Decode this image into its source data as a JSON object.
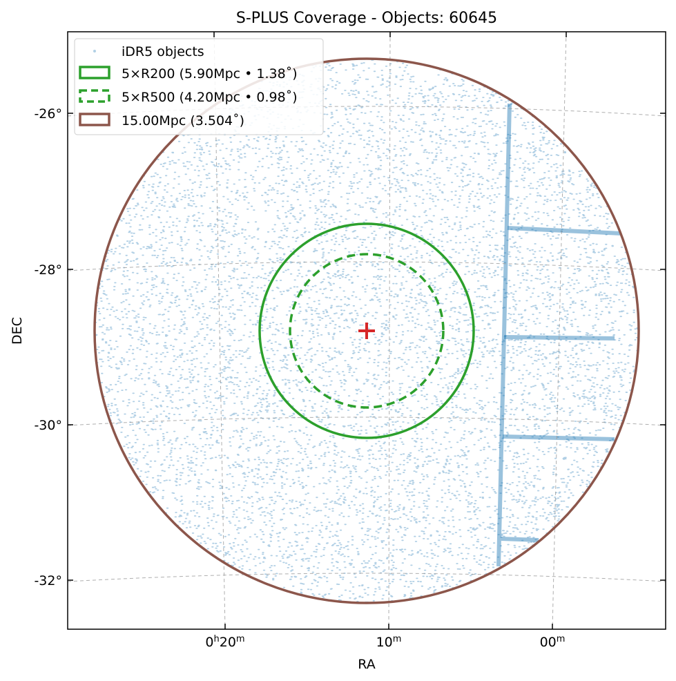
{
  "chart_data": {
    "type": "scatter",
    "title": "S-PLUS Coverage - Objects: 60645",
    "xlabel": "RA",
    "ylabel": "DEC",
    "object_count": 60645,
    "projection": "sky (WCS, gnomonic-like)",
    "grid": true,
    "legend_position": "top-left",
    "center": {
      "ra_label": "0h11m",
      "dec_deg": -28.8,
      "marker": "plus",
      "marker_color": "#d62728"
    },
    "x_ticks": [
      {
        "label": "0",
        "sup1": "h",
        "mid": "20",
        "sup2": "m"
      },
      {
        "label": "",
        "sup1": "",
        "mid": "10",
        "sup2": "m"
      },
      {
        "label": "",
        "sup1": "",
        "mid": "00",
        "sup2": "m"
      }
    ],
    "y_ticks": [
      "-26°",
      "-28°",
      "-30°",
      "-32°"
    ],
    "series": [
      {
        "name": "iDR5 objects",
        "kind": "points",
        "color": "#1f77b4"
      },
      {
        "name": "5×R200 (5.90Mpc • 1.38˚)",
        "kind": "circle",
        "radius_deg": 1.38,
        "color": "#2ca02c",
        "linestyle": "solid"
      },
      {
        "name": "5×R500 (4.20Mpc • 0.98˚)",
        "kind": "circle",
        "radius_deg": 0.98,
        "color": "#2ca02c",
        "linestyle": "dashed"
      },
      {
        "name": "15.00Mpc (3.504˚)",
        "kind": "circle",
        "radius_deg": 3.504,
        "color": "#8c564b",
        "linestyle": "solid"
      }
    ]
  }
}
